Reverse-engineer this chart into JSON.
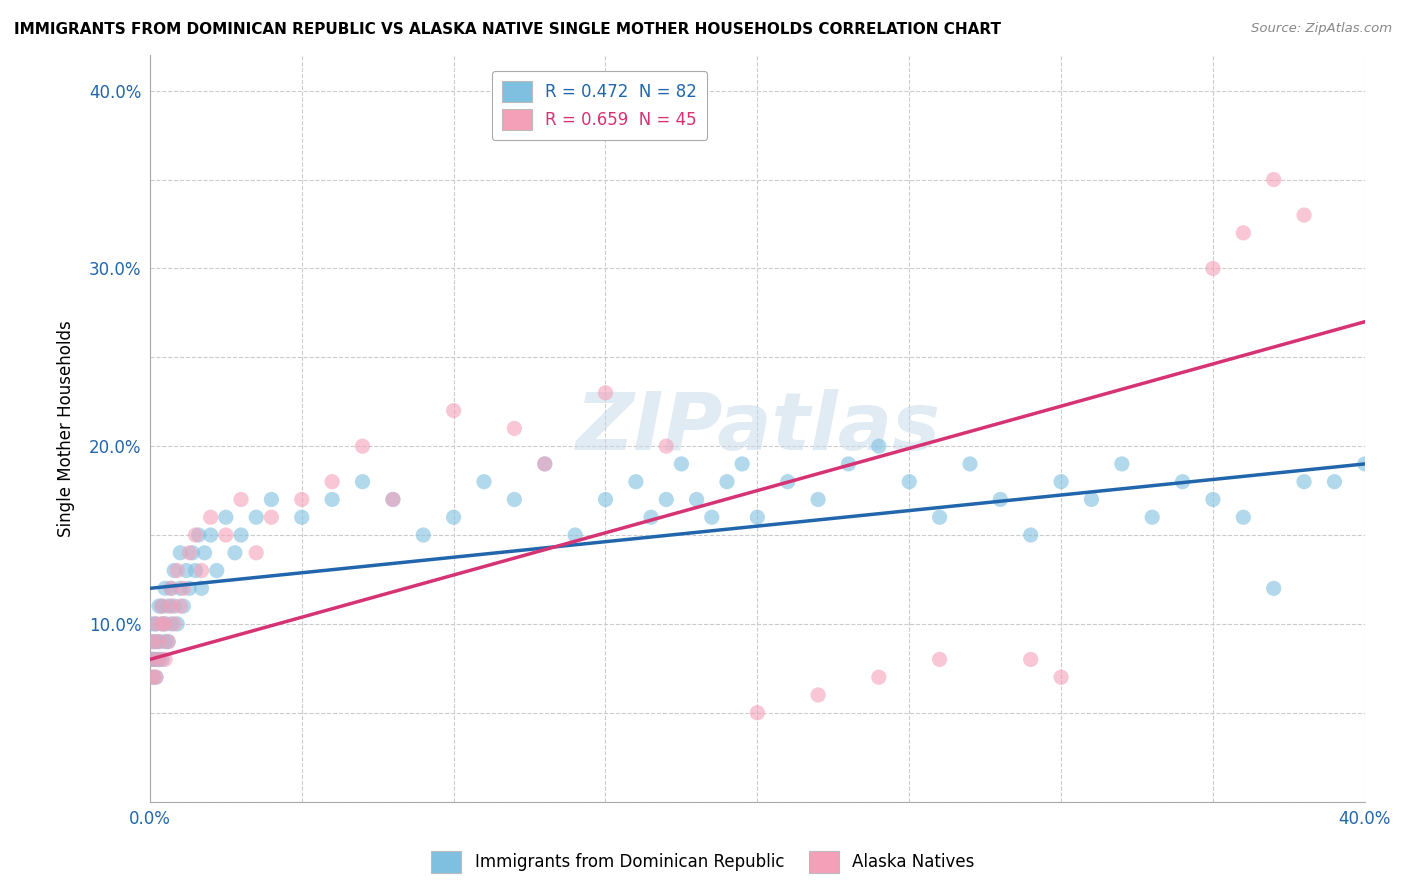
{
  "title": "IMMIGRANTS FROM DOMINICAN REPUBLIC VS ALASKA NATIVE SINGLE MOTHER HOUSEHOLDS CORRELATION CHART",
  "source": "Source: ZipAtlas.com",
  "ylabel": "Single Mother Households",
  "xlim": [
    0.0,
    0.4
  ],
  "ylim": [
    0.0,
    0.42
  ],
  "blue_color": "#7fbfdf",
  "pink_color": "#f4a0b8",
  "blue_line_color": "#2166ac",
  "pink_line_color": "#d63375",
  "R_blue": 0.472,
  "N_blue": 82,
  "R_pink": 0.659,
  "N_pink": 45,
  "legend_label_blue": "Immigrants from Dominican Republic",
  "legend_label_pink": "Alaska Natives",
  "watermark": "ZIPatlas",
  "blue_line_x0": 0.0,
  "blue_line_y0": 0.12,
  "blue_line_x1": 0.4,
  "blue_line_y1": 0.19,
  "pink_line_x0": 0.0,
  "pink_line_y0": 0.08,
  "pink_line_x1": 0.4,
  "pink_line_y1": 0.27,
  "blue_scatter_x": [
    0.001,
    0.001,
    0.001,
    0.001,
    0.001,
    0.002,
    0.002,
    0.002,
    0.002,
    0.003,
    0.003,
    0.003,
    0.004,
    0.004,
    0.004,
    0.005,
    0.005,
    0.005,
    0.006,
    0.006,
    0.007,
    0.007,
    0.008,
    0.008,
    0.009,
    0.01,
    0.01,
    0.011,
    0.012,
    0.013,
    0.014,
    0.015,
    0.016,
    0.017,
    0.018,
    0.02,
    0.022,
    0.025,
    0.028,
    0.03,
    0.035,
    0.04,
    0.05,
    0.06,
    0.07,
    0.08,
    0.09,
    0.1,
    0.11,
    0.12,
    0.13,
    0.14,
    0.15,
    0.16,
    0.165,
    0.17,
    0.175,
    0.18,
    0.185,
    0.19,
    0.195,
    0.2,
    0.21,
    0.22,
    0.23,
    0.24,
    0.25,
    0.26,
    0.27,
    0.28,
    0.29,
    0.3,
    0.31,
    0.32,
    0.33,
    0.34,
    0.35,
    0.36,
    0.37,
    0.38,
    0.39,
    0.4
  ],
  "blue_scatter_y": [
    0.07,
    0.08,
    0.08,
    0.09,
    0.1,
    0.07,
    0.08,
    0.09,
    0.1,
    0.08,
    0.09,
    0.11,
    0.08,
    0.1,
    0.11,
    0.09,
    0.1,
    0.12,
    0.09,
    0.11,
    0.1,
    0.12,
    0.11,
    0.13,
    0.1,
    0.12,
    0.14,
    0.11,
    0.13,
    0.12,
    0.14,
    0.13,
    0.15,
    0.12,
    0.14,
    0.15,
    0.13,
    0.16,
    0.14,
    0.15,
    0.16,
    0.17,
    0.16,
    0.17,
    0.18,
    0.17,
    0.15,
    0.16,
    0.18,
    0.17,
    0.19,
    0.15,
    0.17,
    0.18,
    0.16,
    0.17,
    0.19,
    0.17,
    0.16,
    0.18,
    0.19,
    0.16,
    0.18,
    0.17,
    0.19,
    0.2,
    0.18,
    0.16,
    0.19,
    0.17,
    0.15,
    0.18,
    0.17,
    0.19,
    0.16,
    0.18,
    0.17,
    0.16,
    0.12,
    0.18,
    0.18,
    0.19
  ],
  "pink_scatter_x": [
    0.001,
    0.001,
    0.001,
    0.002,
    0.002,
    0.003,
    0.003,
    0.004,
    0.004,
    0.005,
    0.005,
    0.006,
    0.007,
    0.007,
    0.008,
    0.009,
    0.01,
    0.011,
    0.013,
    0.015,
    0.017,
    0.02,
    0.025,
    0.03,
    0.035,
    0.04,
    0.05,
    0.06,
    0.07,
    0.08,
    0.1,
    0.12,
    0.13,
    0.15,
    0.17,
    0.2,
    0.22,
    0.24,
    0.26,
    0.29,
    0.3,
    0.35,
    0.36,
    0.37,
    0.38
  ],
  "pink_scatter_y": [
    0.07,
    0.08,
    0.09,
    0.07,
    0.1,
    0.08,
    0.09,
    0.1,
    0.11,
    0.08,
    0.1,
    0.09,
    0.11,
    0.12,
    0.1,
    0.13,
    0.11,
    0.12,
    0.14,
    0.15,
    0.13,
    0.16,
    0.15,
    0.17,
    0.14,
    0.16,
    0.17,
    0.18,
    0.2,
    0.17,
    0.22,
    0.21,
    0.19,
    0.23,
    0.2,
    0.05,
    0.06,
    0.07,
    0.08,
    0.08,
    0.07,
    0.3,
    0.32,
    0.35,
    0.33
  ]
}
